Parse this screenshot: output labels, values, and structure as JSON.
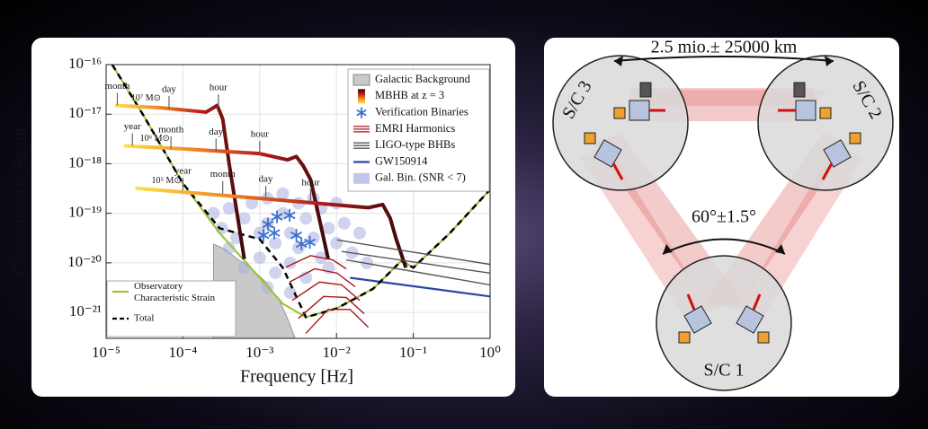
{
  "chart_data": {
    "type": "line",
    "xlabel": "Frequency [Hz]",
    "ylabel": "Characteristic Strain",
    "xscale": "log",
    "yscale": "log",
    "xlim": [
      1e-05,
      1
    ],
    "ylim": [
      3e-22,
      1e-16
    ],
    "xticks": [
      {
        "value": 1e-05,
        "label": "10⁻⁵"
      },
      {
        "value": 0.0001,
        "label": "10⁻⁴"
      },
      {
        "value": 0.001,
        "label": "10⁻³"
      },
      {
        "value": 0.01,
        "label": "10⁻²"
      },
      {
        "value": 0.1,
        "label": "10⁻¹"
      },
      {
        "value": 1,
        "label": "10⁰"
      }
    ],
    "yticks": [
      {
        "value": 1e-16,
        "label": "10⁻¹⁶"
      },
      {
        "value": 1e-17,
        "label": "10⁻¹⁷"
      },
      {
        "value": 1e-18,
        "label": "10⁻¹⁸"
      },
      {
        "value": 1e-19,
        "label": "10⁻¹⁹"
      },
      {
        "value": 1e-20,
        "label": "10⁻²⁰"
      },
      {
        "value": 1e-21,
        "label": "10⁻²¹"
      }
    ],
    "grid": true,
    "series": [
      {
        "name": "Galactic Background",
        "type": "area",
        "color": "#c9c9c9",
        "legend": "upper right",
        "x": [
          0.00025,
          0.00035,
          0.00053,
          0.00079,
          0.0012,
          0.0018,
          0.0023,
          0.0029
        ],
        "values": [
          2.4e-20,
          1.9e-20,
          1.15e-20,
          7.6e-21,
          4.1e-21,
          1.75e-21,
          7.6e-22,
          3e-22
        ]
      },
      {
        "name": "MBHB at z = 3",
        "type": "gradient-line",
        "colors": [
          "#ffe24a",
          "#f08a24",
          "#b81c1c",
          "#3a0808"
        ],
        "legend": "upper right",
        "tracks": [
          {
            "label": "10⁷ M⊙",
            "x": [
              1.3e-05,
              5e-05,
              0.0002,
              0.00028,
              0.00033,
              0.0004,
              0.00063
            ],
            "values": [
              1.5e-17,
              1.35e-17,
              1.1e-17,
              1.5e-17,
              8e-18,
              1e-18,
              1.2e-20
            ]
          },
          {
            "label": "10⁶ M⊙",
            "x": [
              1.7e-05,
              0.0001,
              0.001,
              0.0023,
              0.003,
              0.0037,
              0.0046,
              0.0078
            ],
            "values": [
              2.3e-18,
              2e-18,
              1.6e-18,
              1.2e-18,
              1.4e-18,
              9e-19,
              4.8e-19,
              1.2e-20
            ]
          },
          {
            "label": "10⁵ M⊙",
            "x": [
              2.4e-05,
              0.001,
              0.026,
              0.04,
              0.05,
              0.06,
              0.08
            ],
            "values": [
              3.2e-19,
              2e-19,
              1.3e-19,
              1.5e-19,
              8e-20,
              3e-20,
              8e-21
            ]
          }
        ]
      },
      {
        "name": "Verification Binaries",
        "type": "scatter",
        "marker": "asterisk",
        "color": "#3b6fd1",
        "legend": "upper right",
        "x": [
          0.00128,
          0.00155,
          0.00112,
          0.00245,
          0.00168,
          0.003,
          0.0035,
          0.0045
        ],
        "values": [
          6e-20,
          4e-20,
          3.6e-20,
          9.1e-20,
          8.5e-20,
          3.6e-20,
          2.4e-20,
          2.6e-20
        ]
      },
      {
        "name": "EMRI Harmonics",
        "type": "multi-line",
        "color": "#a8161a",
        "legend": "upper right",
        "tracks": [
          {
            "x": [
              0.0022,
              0.0046,
              0.0089,
              0.0134
            ],
            "values": [
              8.2e-21,
              1.4e-20,
              1.15e-20,
              7.6e-21
            ]
          },
          {
            "x": [
              0.00245,
              0.0052,
              0.0102,
              0.0175
            ],
            "values": [
              4.1e-21,
              7.6e-21,
              6.2e-21,
              3.3e-21
            ]
          },
          {
            "x": [
              0.00265,
              0.006,
              0.0117,
              0.02
            ],
            "values": [
              1.75e-21,
              4.1e-21,
              3.6e-21,
              1.75e-21
            ]
          },
          {
            "x": [
              0.0032,
              0.0068,
              0.0134,
              0.023
            ],
            "values": [
              7.6e-22,
              2.1e-21,
              2e-21,
              9.4e-22
            ]
          },
          {
            "x": [
              0.004,
              0.0078,
              0.015,
              0.026
            ],
            "values": [
              3.8e-22,
              1.15e-21,
              1.15e-21,
              5e-22
            ]
          }
        ]
      },
      {
        "name": "LIGO-type BHBs",
        "type": "multi-line",
        "color": "#555555",
        "legend": "upper right",
        "tracks": [
          {
            "x": [
              0.0102,
              1
            ],
            "values": [
              2.9e-20,
              9.3e-21
            ]
          },
          {
            "x": [
              0.0117,
              1
            ],
            "values": [
              1.7e-20,
              6.2e-21
            ]
          },
          {
            "x": [
              0.0134,
              1
            ],
            "values": [
              1.15e-20,
              3.6e-21
            ]
          }
        ]
      },
      {
        "name": "GW150914",
        "type": "line",
        "color": "#2b45a6",
        "legend": "upper right",
        "x": [
          0.015,
          1
        ],
        "values": [
          5e-21,
          2.1e-21
        ]
      },
      {
        "name": "Gal. Bin. (SNR < 7)",
        "type": "scatter",
        "marker": "dot",
        "color": "#a9aee0",
        "legend": "upper right",
        "x": [
          0.00025,
          0.00032,
          0.0004,
          0.0005,
          0.00063,
          0.00079,
          0.001,
          0.001,
          0.00126,
          0.00126,
          0.0016,
          0.0016,
          0.002,
          0.002,
          0.0025,
          0.0025,
          0.0032,
          0.0032,
          0.004,
          0.004,
          0.005,
          0.005,
          0.0063,
          0.0063,
          0.0079,
          0.0079,
          0.01,
          0.01,
          0.0126,
          0.016,
          0.02,
          0.025,
          0.0004,
          0.00063,
          0.00126,
          0.0025
        ],
        "values": [
          1e-19,
          5e-20,
          1.26e-19,
          3.2e-20,
          7.9e-20,
          1.6e-19,
          4e-20,
          1.26e-20,
          2e-19,
          6.3e-20,
          2.5e-20,
          6.3e-21,
          2.5e-19,
          1e-19,
          4e-20,
          1e-20,
          1.6e-19,
          2e-20,
          7.9e-20,
          5e-21,
          2e-19,
          3.2e-20,
          1.26e-20,
          1.26e-19,
          5e-20,
          7.9e-21,
          2.5e-20,
          1.6e-19,
          6.3e-20,
          1.6e-20,
          4e-20,
          1e-20,
          2e-20,
          7.9e-21,
          3.2e-21,
          2.5e-21
        ]
      },
      {
        "name": "Observatory Characteristic Strain",
        "type": "line",
        "color": "#9bc53d",
        "legend": "lower left",
        "x": [
          1.2e-05,
          3e-05,
          0.0001,
          0.0003,
          0.001,
          0.002,
          0.004,
          0.01,
          0.03,
          0.07,
          0.1,
          0.3,
          1
        ],
        "values": [
          1e-16,
          1e-17,
          4e-19,
          4e-20,
          5e-21,
          1.5e-21,
          8e-22,
          1.2e-21,
          3e-21,
          1.1e-20,
          8e-21,
          4e-20,
          3e-19
        ]
      },
      {
        "name": "Total",
        "type": "line",
        "dash": true,
        "color": "#000000",
        "legend": "lower left",
        "x": [
          1.2e-05,
          3e-05,
          0.0001,
          0.0003,
          0.001,
          0.002,
          0.004,
          0.01,
          0.03,
          0.07,
          0.1,
          0.3,
          1
        ],
        "values": [
          1e-16,
          1e-17,
          4e-19,
          5e-20,
          3e-20,
          8e-21,
          8e-22,
          1.2e-21,
          3e-21,
          1.1e-20,
          8e-21,
          4e-20,
          3e-19
        ]
      }
    ],
    "annotations": [
      {
        "text": "month",
        "x": 1.4e-05,
        "y": 1.5e-17
      },
      {
        "text": "day",
        "x": 6.6e-05,
        "y": 1.3e-17
      },
      {
        "text": "hour",
        "x": 0.00029,
        "y": 1.4e-17
      },
      {
        "text": "year",
        "x": 2.2e-05,
        "y": 2.3e-18
      },
      {
        "text": "month",
        "x": 7e-05,
        "y": 2e-18
      },
      {
        "text": "day",
        "x": 0.00027,
        "y": 1.8e-18
      },
      {
        "text": "hour",
        "x": 0.001,
        "y": 1.6e-18
      },
      {
        "text": "year",
        "x": 0.0001,
        "y": 2.9e-19
      },
      {
        "text": "month",
        "x": 0.00033,
        "y": 2.5e-19
      },
      {
        "text": "day",
        "x": 0.0012,
        "y": 2e-19
      },
      {
        "text": "hour",
        "x": 0.0046,
        "y": 1.7e-19
      }
    ]
  },
  "diagram": {
    "arm_length": "2.5 mio.± 25000 km",
    "angle": "60°±1.5°",
    "spacecraft": [
      "S/C 1",
      "S/C 2",
      "S/C 3"
    ]
  }
}
